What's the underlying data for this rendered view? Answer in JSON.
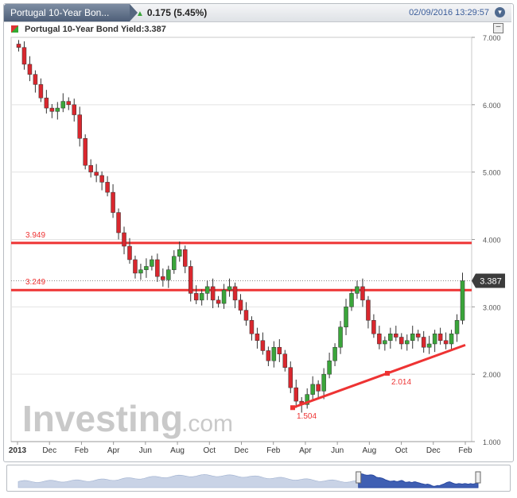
{
  "header": {
    "title": "Portugal 10-Year Bon...",
    "change": "0.175 (5.45%)",
    "datetime": "02/09/2016 13:29:57"
  },
  "legend": {
    "label": "Portugal 10-Year Bond Yield:3.387"
  },
  "watermark": {
    "brand": "Investing",
    "suffix": ".com"
  },
  "colors": {
    "up": "#3aa53a",
    "down": "#d9272e",
    "line": "#ee3333",
    "current_tag": "#3c3c3c"
  },
  "chart_data": {
    "type": "candlestick",
    "title": "Portugal 10-Year Bond Yield:3.387",
    "ylim": [
      1.0,
      7.0
    ],
    "y_ticks": [
      "7.000",
      "6.000",
      "5.000",
      "4.000",
      "3.000",
      "2.000",
      "1.000"
    ],
    "x_ticks": [
      "2013",
      "Dec",
      "Feb",
      "Apr",
      "Jun",
      "Aug",
      "Oct",
      "Dec",
      "Feb",
      "Apr",
      "Jun",
      "Aug",
      "Oct",
      "Dec",
      "Feb"
    ],
    "current_value": "3.387",
    "horizontal_lines": [
      {
        "label": "3.949",
        "value": 3.949
      },
      {
        "label": "3.249",
        "value": 3.249
      }
    ],
    "trendline": {
      "points": [
        {
          "label": "1.504",
          "value": 1.504
        },
        {
          "label": "2.014",
          "value": 2.014
        }
      ]
    },
    "closes": [
      6.85,
      6.6,
      6.45,
      6.3,
      6.1,
      5.95,
      5.9,
      5.95,
      6.05,
      6.0,
      5.85,
      5.5,
      5.1,
      5.0,
      4.95,
      4.85,
      4.7,
      4.4,
      4.1,
      3.9,
      3.7,
      3.5,
      3.55,
      3.6,
      3.7,
      3.45,
      3.4,
      3.55,
      3.75,
      3.85,
      3.6,
      3.2,
      3.1,
      3.2,
      3.3,
      3.1,
      3.05,
      3.25,
      3.3,
      3.1,
      2.95,
      2.8,
      2.6,
      2.5,
      2.35,
      2.2,
      2.4,
      2.3,
      2.1,
      1.8,
      1.6,
      1.55,
      1.7,
      1.85,
      1.75,
      2.0,
      2.2,
      2.4,
      2.7,
      3.0,
      3.2,
      3.3,
      3.1,
      2.8,
      2.6,
      2.45,
      2.5,
      2.6,
      2.55,
      2.45,
      2.5,
      2.6,
      2.55,
      2.4,
      2.45,
      2.6,
      2.5,
      2.45,
      2.6,
      2.8,
      3.387
    ]
  }
}
